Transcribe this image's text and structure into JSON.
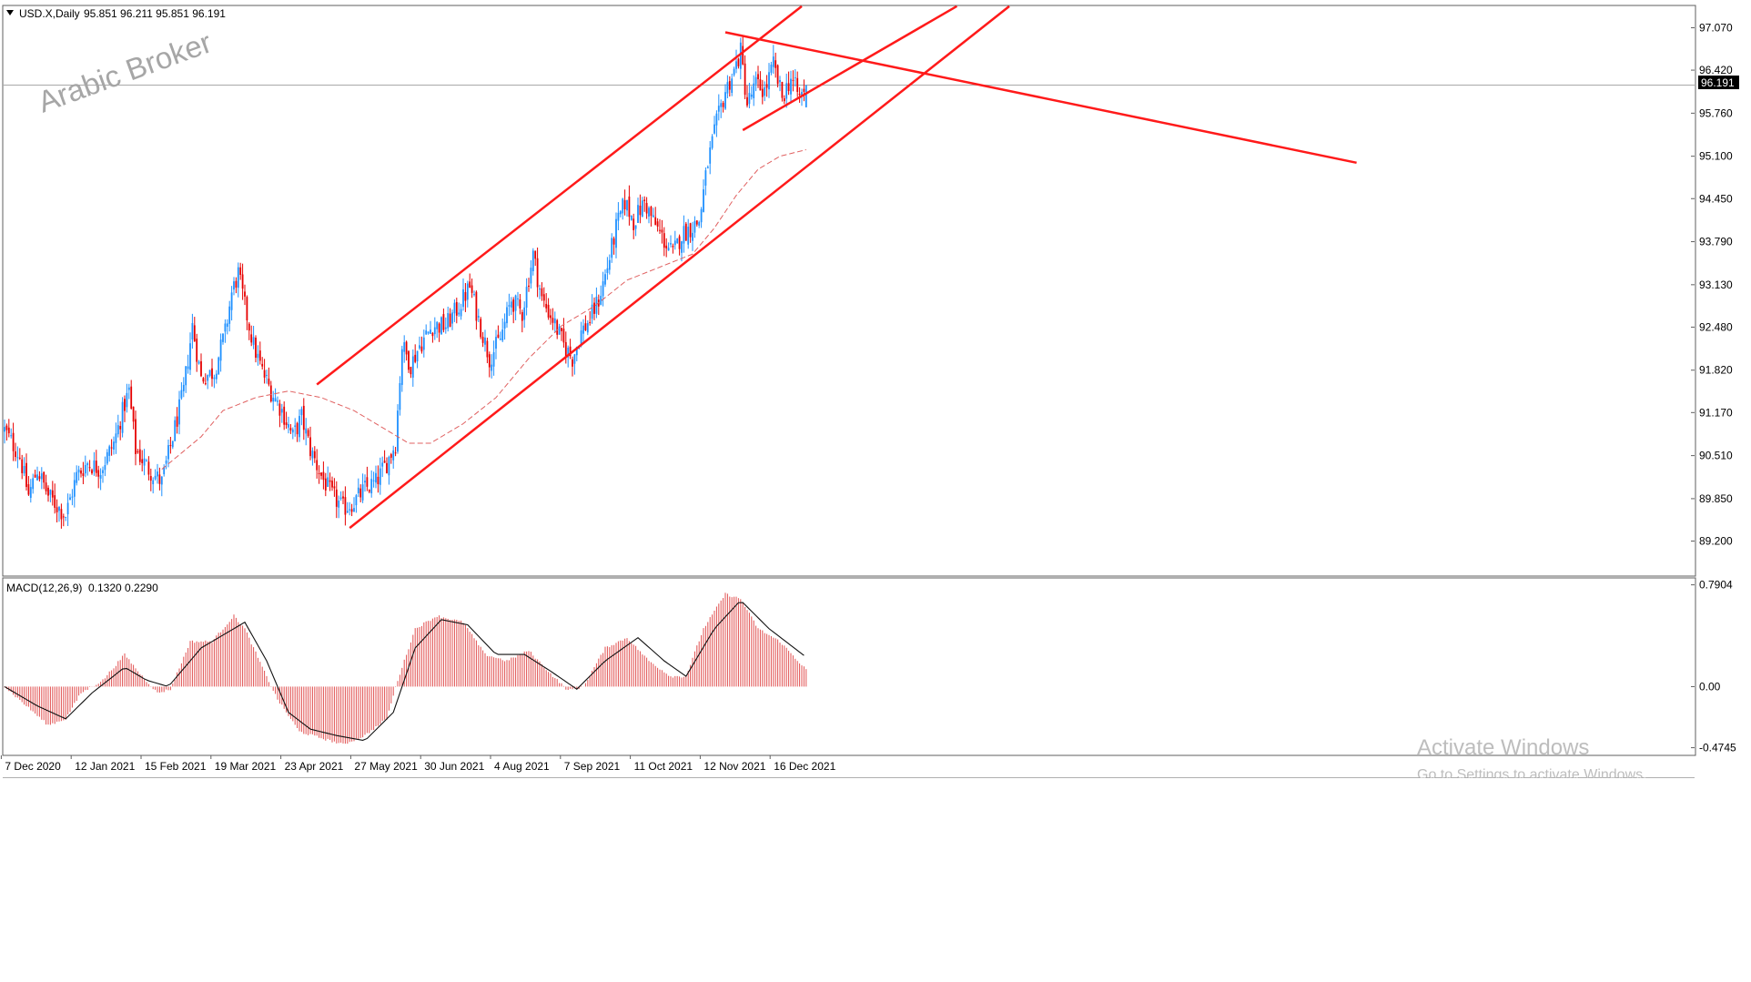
{
  "colors": {
    "background": "#ffffff",
    "frame": "#5f5f5f",
    "grid": "#c7c7c7",
    "bull": "#1e90ff",
    "bear": "#e60000",
    "trendline": "#ff1a1a",
    "ma": "#e06060",
    "macd_hist": "#e05050",
    "signal": "#111111",
    "watermark": "#a6a6a6",
    "activation": "#bdbdbd",
    "price_badge_bg": "#000000",
    "price_badge_fg": "#ffffff"
  },
  "header": {
    "icon": "triangle-down-icon",
    "symbol": "USD.X,Daily",
    "ohlc": "95.851 96.211 95.851 96.191"
  },
  "watermark": {
    "text": "Arabic Broker"
  },
  "price_badge": {
    "value": "96.191"
  },
  "activation": {
    "title": "Activate Windows",
    "subtitle": "Go to Settings to activate Windows."
  },
  "chart_data": {
    "type": "candlestick",
    "symbol": "USD.X",
    "timeframe": "Daily",
    "last_bar": {
      "open": 95.851,
      "high": 96.211,
      "low": 95.851,
      "close": 96.191
    },
    "ylim": [
      88.9,
      97.3
    ],
    "yticks": [
      "97.070",
      "96.420",
      "95.760",
      "95.100",
      "94.450",
      "93.790",
      "93.130",
      "92.480",
      "91.820",
      "91.170",
      "90.510",
      "89.850",
      "89.200"
    ],
    "xticks": [
      "7 Dec 2020",
      "12 Jan 2021",
      "15 Feb 2021",
      "19 Mar 2021",
      "23 Apr 2021",
      "27 May 2021",
      "30 Jun 2021",
      "4 Aug 2021",
      "7 Sep 2021",
      "11 Oct 2021",
      "12 Nov 2021",
      "16 Dec 2021"
    ],
    "close_path": [
      {
        "i": 0,
        "v": 90.9
      },
      {
        "i": 7,
        "v": 90.5
      },
      {
        "i": 11,
        "v": 89.9
      },
      {
        "i": 15,
        "v": 90.3
      },
      {
        "i": 20,
        "v": 89.9
      },
      {
        "i": 25,
        "v": 89.7
      },
      {
        "i": 28,
        "v": 89.6
      },
      {
        "i": 33,
        "v": 90.2
      },
      {
        "i": 38,
        "v": 90.4
      },
      {
        "i": 44,
        "v": 90.3
      },
      {
        "i": 50,
        "v": 90.7
      },
      {
        "i": 55,
        "v": 91.3
      },
      {
        "i": 57,
        "v": 91.5
      },
      {
        "i": 60,
        "v": 90.6
      },
      {
        "i": 66,
        "v": 90.3
      },
      {
        "i": 72,
        "v": 90.1
      },
      {
        "i": 77,
        "v": 90.8
      },
      {
        "i": 82,
        "v": 91.5
      },
      {
        "i": 86,
        "v": 92.5
      },
      {
        "i": 90,
        "v": 91.7
      },
      {
        "i": 96,
        "v": 91.8
      },
      {
        "i": 101,
        "v": 92.4
      },
      {
        "i": 104,
        "v": 93.0
      },
      {
        "i": 107,
        "v": 93.3
      },
      {
        "i": 110,
        "v": 92.8
      },
      {
        "i": 114,
        "v": 92.2
      },
      {
        "i": 118,
        "v": 91.8
      },
      {
        "i": 122,
        "v": 91.5
      },
      {
        "i": 127,
        "v": 91.2
      },
      {
        "i": 132,
        "v": 90.8
      },
      {
        "i": 136,
        "v": 91.1
      },
      {
        "i": 140,
        "v": 90.6
      },
      {
        "i": 145,
        "v": 90.2
      },
      {
        "i": 150,
        "v": 89.9
      },
      {
        "i": 155,
        "v": 89.7
      },
      {
        "i": 160,
        "v": 89.8
      },
      {
        "i": 165,
        "v": 90.0
      },
      {
        "i": 170,
        "v": 90.1
      },
      {
        "i": 175,
        "v": 90.4
      },
      {
        "i": 179,
        "v": 90.7
      },
      {
        "i": 182,
        "v": 92.2
      },
      {
        "i": 186,
        "v": 91.9
      },
      {
        "i": 190,
        "v": 92.2
      },
      {
        "i": 196,
        "v": 92.5
      },
      {
        "i": 202,
        "v": 92.5
      },
      {
        "i": 208,
        "v": 92.8
      },
      {
        "i": 213,
        "v": 93.1
      },
      {
        "i": 217,
        "v": 92.6
      },
      {
        "i": 222,
        "v": 92.0
      },
      {
        "i": 227,
        "v": 92.3
      },
      {
        "i": 232,
        "v": 92.9
      },
      {
        "i": 237,
        "v": 92.7
      },
      {
        "i": 242,
        "v": 93.6
      },
      {
        "i": 246,
        "v": 92.9
      },
      {
        "i": 251,
        "v": 92.6
      },
      {
        "i": 256,
        "v": 92.2
      },
      {
        "i": 260,
        "v": 92.0
      },
      {
        "i": 264,
        "v": 92.4
      },
      {
        "i": 268,
        "v": 92.6
      },
      {
        "i": 272,
        "v": 92.9
      },
      {
        "i": 276,
        "v": 93.4
      },
      {
        "i": 280,
        "v": 94.0
      },
      {
        "i": 284,
        "v": 94.4
      },
      {
        "i": 288,
        "v": 94.1
      },
      {
        "i": 293,
        "v": 94.4
      },
      {
        "i": 297,
        "v": 94.1
      },
      {
        "i": 302,
        "v": 93.8
      },
      {
        "i": 306,
        "v": 93.6
      },
      {
        "i": 310,
        "v": 93.9
      },
      {
        "i": 314,
        "v": 94.0
      },
      {
        "i": 318,
        "v": 94.1
      },
      {
        "i": 322,
        "v": 95.0
      },
      {
        "i": 326,
        "v": 95.6
      },
      {
        "i": 330,
        "v": 96.1
      },
      {
        "i": 334,
        "v": 96.4
      },
      {
        "i": 337,
        "v": 96.7
      },
      {
        "i": 340,
        "v": 95.9
      },
      {
        "i": 344,
        "v": 96.2
      },
      {
        "i": 348,
        "v": 96.1
      },
      {
        "i": 352,
        "v": 96.5
      },
      {
        "i": 356,
        "v": 96.0
      },
      {
        "i": 360,
        "v": 96.3
      },
      {
        "i": 364,
        "v": 96.0
      },
      {
        "i": 367,
        "v": 96.191
      }
    ],
    "moving_average": [
      {
        "i": 72,
        "v": 90.3
      },
      {
        "i": 90,
        "v": 90.8
      },
      {
        "i": 100,
        "v": 91.2
      },
      {
        "i": 115,
        "v": 91.4
      },
      {
        "i": 130,
        "v": 91.5
      },
      {
        "i": 145,
        "v": 91.4
      },
      {
        "i": 160,
        "v": 91.2
      },
      {
        "i": 175,
        "v": 90.9
      },
      {
        "i": 185,
        "v": 90.7
      },
      {
        "i": 195,
        "v": 90.7
      },
      {
        "i": 210,
        "v": 91.0
      },
      {
        "i": 225,
        "v": 91.4
      },
      {
        "i": 240,
        "v": 92.0
      },
      {
        "i": 255,
        "v": 92.5
      },
      {
        "i": 270,
        "v": 92.8
      },
      {
        "i": 285,
        "v": 93.2
      },
      {
        "i": 300,
        "v": 93.4
      },
      {
        "i": 315,
        "v": 93.6
      },
      {
        "i": 325,
        "v": 94.0
      },
      {
        "i": 335,
        "v": 94.5
      },
      {
        "i": 345,
        "v": 94.9
      },
      {
        "i": 355,
        "v": 95.1
      },
      {
        "i": 367,
        "v": 95.2
      }
    ],
    "trendlines": [
      {
        "from": {
          "i": 143,
          "v": 91.6
        },
        "to": {
          "i": 365,
          "v": 97.4
        }
      },
      {
        "from": {
          "i": 158,
          "v": 89.4
        },
        "to": {
          "i": 460,
          "v": 97.4
        }
      },
      {
        "from": {
          "i": 330,
          "v": 97.0
        },
        "to": {
          "i": 619,
          "v": 95.0
        }
      },
      {
        "from": {
          "i": 338,
          "v": 95.5
        },
        "to": {
          "i": 436,
          "v": 97.4
        }
      }
    ],
    "macd": {
      "label": "MACD(12,26,9)",
      "values_text": "0.1320 0.2290",
      "main": 0.132,
      "signal": 0.229,
      "ylim": [
        -0.52,
        0.83
      ],
      "yticks": [
        "0.7904",
        "0.00",
        "-0.4745"
      ],
      "hist_path": [
        {
          "i": 0,
          "v": 0.0
        },
        {
          "i": 10,
          "v": -0.15
        },
        {
          "i": 20,
          "v": -0.3
        },
        {
          "i": 28,
          "v": -0.25
        },
        {
          "i": 35,
          "v": -0.05
        },
        {
          "i": 45,
          "v": 0.05
        },
        {
          "i": 55,
          "v": 0.25
        },
        {
          "i": 62,
          "v": 0.1
        },
        {
          "i": 70,
          "v": -0.05
        },
        {
          "i": 76,
          "v": -0.02
        },
        {
          "i": 85,
          "v": 0.35
        },
        {
          "i": 95,
          "v": 0.35
        },
        {
          "i": 105,
          "v": 0.55
        },
        {
          "i": 110,
          "v": 0.45
        },
        {
          "i": 118,
          "v": 0.15
        },
        {
          "i": 125,
          "v": -0.1
        },
        {
          "i": 135,
          "v": -0.35
        },
        {
          "i": 145,
          "v": -0.4
        },
        {
          "i": 155,
          "v": -0.45
        },
        {
          "i": 165,
          "v": -0.38
        },
        {
          "i": 175,
          "v": -0.25
        },
        {
          "i": 180,
          "v": 0.05
        },
        {
          "i": 188,
          "v": 0.45
        },
        {
          "i": 198,
          "v": 0.55
        },
        {
          "i": 210,
          "v": 0.5
        },
        {
          "i": 220,
          "v": 0.25
        },
        {
          "i": 230,
          "v": 0.2
        },
        {
          "i": 240,
          "v": 0.28
        },
        {
          "i": 250,
          "v": 0.1
        },
        {
          "i": 258,
          "v": -0.03
        },
        {
          "i": 265,
          "v": 0.0
        },
        {
          "i": 275,
          "v": 0.3
        },
        {
          "i": 285,
          "v": 0.38
        },
        {
          "i": 295,
          "v": 0.2
        },
        {
          "i": 305,
          "v": 0.08
        },
        {
          "i": 312,
          "v": 0.08
        },
        {
          "i": 320,
          "v": 0.45
        },
        {
          "i": 330,
          "v": 0.72
        },
        {
          "i": 337,
          "v": 0.68
        },
        {
          "i": 345,
          "v": 0.45
        },
        {
          "i": 355,
          "v": 0.35
        },
        {
          "i": 367,
          "v": 0.132
        }
      ],
      "signal_path": [
        {
          "i": 0,
          "v": 0.0
        },
        {
          "i": 15,
          "v": -0.15
        },
        {
          "i": 28,
          "v": -0.25
        },
        {
          "i": 40,
          "v": -0.05
        },
        {
          "i": 55,
          "v": 0.15
        },
        {
          "i": 65,
          "v": 0.05
        },
        {
          "i": 75,
          "v": 0.0
        },
        {
          "i": 90,
          "v": 0.3
        },
        {
          "i": 100,
          "v": 0.4
        },
        {
          "i": 110,
          "v": 0.5
        },
        {
          "i": 120,
          "v": 0.2
        },
        {
          "i": 130,
          "v": -0.2
        },
        {
          "i": 140,
          "v": -0.33
        },
        {
          "i": 152,
          "v": -0.38
        },
        {
          "i": 165,
          "v": -0.42
        },
        {
          "i": 178,
          "v": -0.2
        },
        {
          "i": 188,
          "v": 0.3
        },
        {
          "i": 200,
          "v": 0.52
        },
        {
          "i": 212,
          "v": 0.48
        },
        {
          "i": 225,
          "v": 0.25
        },
        {
          "i": 238,
          "v": 0.25
        },
        {
          "i": 250,
          "v": 0.12
        },
        {
          "i": 262,
          "v": -0.02
        },
        {
          "i": 275,
          "v": 0.2
        },
        {
          "i": 290,
          "v": 0.38
        },
        {
          "i": 302,
          "v": 0.2
        },
        {
          "i": 312,
          "v": 0.08
        },
        {
          "i": 325,
          "v": 0.45
        },
        {
          "i": 337,
          "v": 0.67
        },
        {
          "i": 350,
          "v": 0.45
        },
        {
          "i": 367,
          "v": 0.229
        }
      ]
    }
  }
}
